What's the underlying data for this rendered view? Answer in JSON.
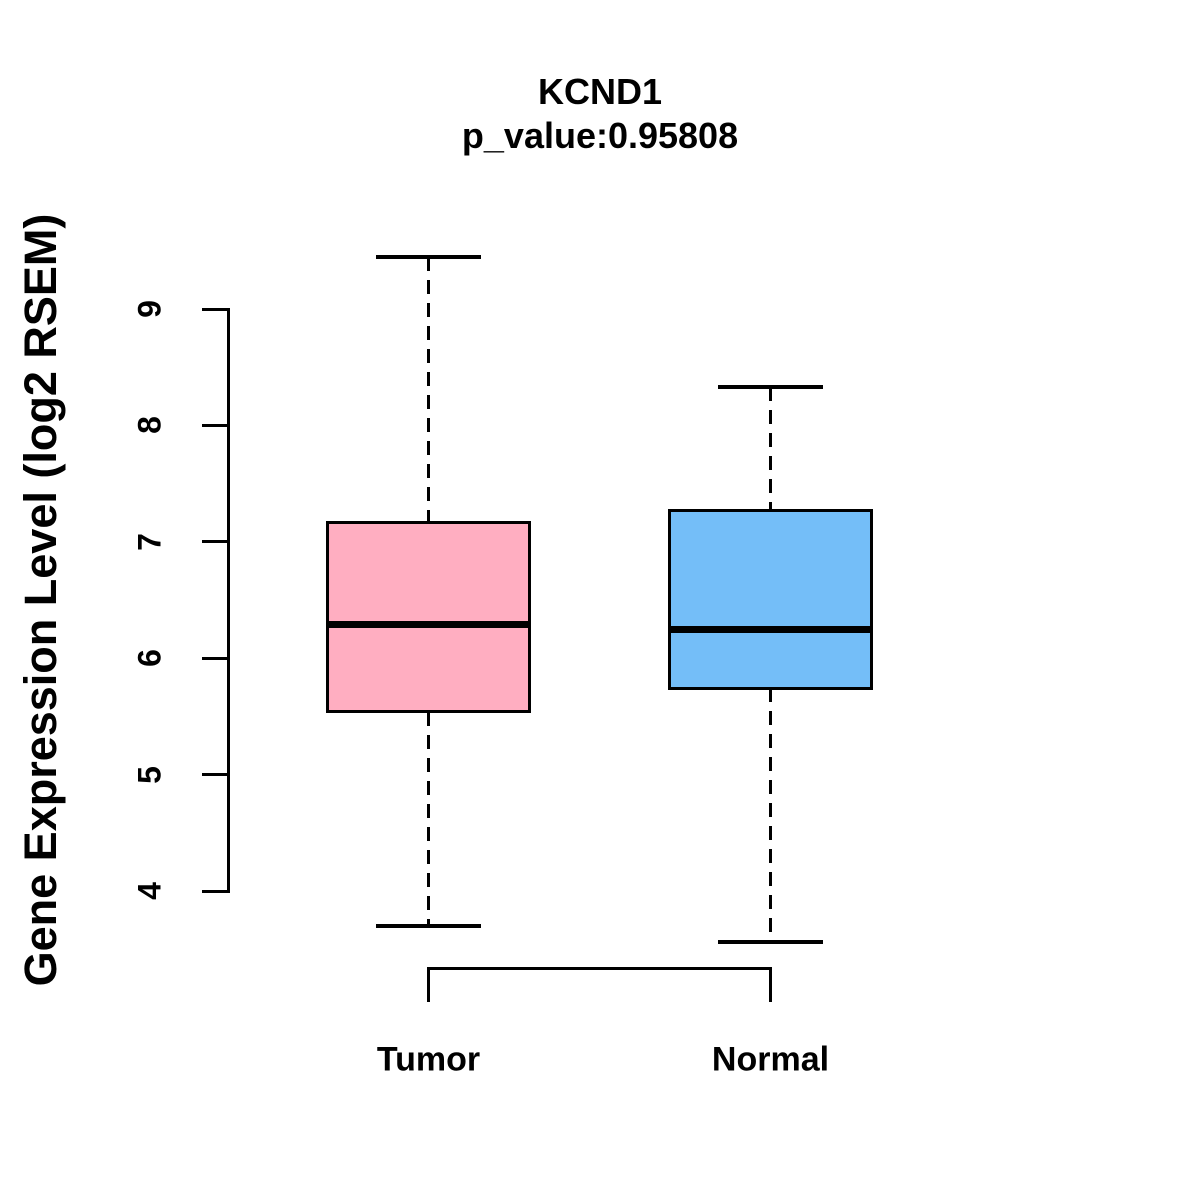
{
  "chart": {
    "title": "KCND1",
    "subtitle": "p_value:0.95808",
    "ylabel": "Gene Expression Level (log2 RSEM)"
  },
  "chart_data": {
    "type": "boxplot",
    "title": "KCND1",
    "subtitle": "p_value:0.95808",
    "xlabel": "",
    "ylabel": "Gene Expression Level (log2 RSEM)",
    "ylim": [
      3.4,
      9.6
    ],
    "yticks": [
      4,
      5,
      6,
      7,
      8,
      9
    ],
    "grid": false,
    "legend": "none",
    "categories": [
      "Tumor",
      "Normal"
    ],
    "groups": [
      {
        "label": "Tumor",
        "color": "#FFAEC1",
        "whisker_low": 3.7,
        "q1": 5.54,
        "median": 6.29,
        "q3": 7.17,
        "whisker_high": 9.45
      },
      {
        "label": "Normal",
        "color": "#74BEF8",
        "whisker_low": 3.56,
        "q1": 5.74,
        "median": 6.25,
        "q3": 7.27,
        "whisker_high": 8.33
      }
    ],
    "colors": {
      "box_border": "#000000",
      "median": "#000000",
      "axis": "#000000",
      "background": "#ffffff"
    }
  }
}
